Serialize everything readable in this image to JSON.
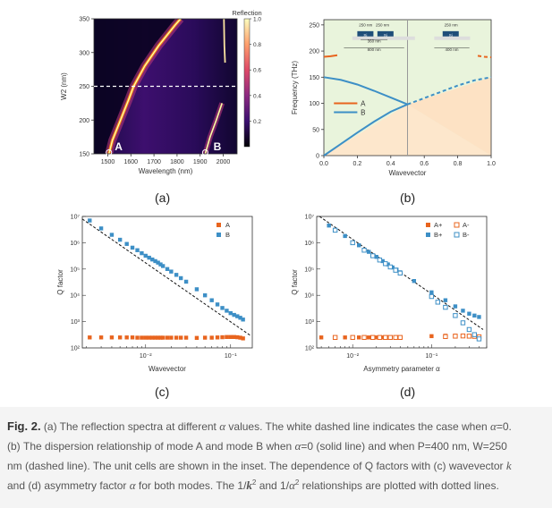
{
  "panel_labels": {
    "a": "(a)",
    "b": "(b)",
    "c": "(c)",
    "d": "(d)"
  },
  "caption": {
    "fig": "Fig. 2.",
    "t1": " (a) The reflection spectra at different ",
    "alpha": "α",
    "t2": " values. The white dashed line indicates the case when ",
    "eq0a": "α",
    "eq0b": "=0.",
    "t3": "(b) The dispersion relationship of mode A and mode B when ",
    "eq1a": "α",
    "eq1b": "=0 (solid line) and when P=400 nm, W=250",
    "t4": "nm (dashed line). The unit cells are shown in the inset. The dependence of Q factors with (c) wavevector ",
    "k": "k",
    "t5": "and (d) asymmetry factor ",
    "alpha2": "α",
    "t6": " for both modes. The 1/",
    "k2": "k",
    "sup1": "2",
    "t7": " and 1/",
    "a2": "α",
    "sup2": "2",
    "t8": " relationships are plotted with dotted lines."
  },
  "chart_data": [
    {
      "id": "a",
      "type": "heatmap",
      "title": "",
      "xlabel": "Wavelength (nm)",
      "ylabel": "W2 (nm)",
      "xlim": [
        1440,
        2060
      ],
      "ylim": [
        150,
        350
      ],
      "xticks": [
        1500,
        1600,
        1700,
        1800,
        1900,
        2000
      ],
      "yticks": [
        150,
        200,
        250,
        300,
        350
      ],
      "colorbar": {
        "label": "Reflection",
        "ticks": [
          1.0,
          0.8,
          0.6,
          0.4,
          0.2
        ],
        "range": [
          0,
          1.0
        ]
      },
      "dashed_line_y": 250,
      "mode_labels": [
        "A",
        "B"
      ],
      "modeA_curve": {
        "w2": [
          150,
          170,
          200,
          230,
          250,
          280,
          310,
          340,
          350
        ],
        "wavelength": [
          1505,
          1520,
          1555,
          1590,
          1612,
          1660,
          1720,
          1790,
          1815
        ]
      },
      "modeB_curve": {
        "w2": [
          150,
          175,
          200,
          225
        ],
        "wavelength": [
          1922,
          1943,
          1970,
          1995
        ]
      },
      "modeB_top": {
        "w2": [
          285,
          310,
          350
        ],
        "wavelength": [
          2008,
          2005,
          2003
        ]
      }
    },
    {
      "id": "b",
      "type": "line",
      "title": "",
      "xlabel": "Wavevector",
      "ylabel": "Frequency (THz)",
      "xlim": [
        0,
        1.0
      ],
      "ylim": [
        0,
        260
      ],
      "xticks": [
        0.0,
        0.2,
        0.4,
        0.6,
        0.8,
        1.0
      ],
      "yticks": [
        0,
        50,
        100,
        150,
        200,
        250
      ],
      "legend": [
        "A",
        "B"
      ],
      "vline_x": 0.5,
      "series": [
        {
          "name": "A",
          "style": "solid",
          "x": [
            0.0,
            0.04,
            0.08
          ],
          "y": [
            189,
            190,
            192
          ]
        },
        {
          "name": "",
          "style": "dashed",
          "x": [
            0.92,
            0.96,
            1.0
          ],
          "y": [
            191,
            189,
            188
          ]
        },
        {
          "name": "B",
          "style": "solid",
          "x": [
            0.0,
            0.1,
            0.2,
            0.3,
            0.4,
            0.5
          ],
          "y": [
            150,
            145,
            136,
            124,
            111,
            98
          ]
        },
        {
          "name": "",
          "style": "solid",
          "x": [
            0.0,
            0.1,
            0.2,
            0.3,
            0.4,
            0.5
          ],
          "y": [
            0,
            22,
            44,
            65,
            84,
            98
          ]
        },
        {
          "name": "",
          "style": "dashed",
          "x": [
            0.5,
            0.6,
            0.7,
            0.8,
            0.9,
            1.0
          ],
          "y": [
            98,
            110,
            122,
            134,
            144,
            150
          ]
        }
      ],
      "inset": {
        "left_labels": [
          "250 nm",
          "250 nm",
          "Si",
          "Si",
          "360 nm",
          "800 nm"
        ],
        "right_labels": [
          "250 nm",
          "Si",
          "400 nm"
        ]
      }
    },
    {
      "id": "c",
      "type": "scatter",
      "title": "",
      "xlabel": "Wavevector",
      "ylabel": "Q factor",
      "xscale": "log",
      "yscale": "log",
      "xlim": [
        0.0018,
        0.18
      ],
      "ylim": [
        100,
        10000000
      ],
      "xticks": [
        0.01,
        0.1
      ],
      "xtick_labels": [
        "10⁻²",
        "10⁻¹"
      ],
      "yticks": [
        100,
        1000,
        10000,
        100000,
        1000000,
        10000000
      ],
      "ytick_labels": [
        "10²",
        "10³",
        "10⁴",
        "10⁵",
        "10⁶",
        "10⁷"
      ],
      "legend": [
        "A",
        "B"
      ],
      "fit_line": {
        "x": [
          0.0018,
          0.17
        ],
        "y": [
          8000000,
          300
        ]
      },
      "series": [
        {
          "name": "A",
          "color": "#e8641e",
          "marker": "square",
          "x": [
            0.0022,
            0.003,
            0.004,
            0.005,
            0.006,
            0.007,
            0.008,
            0.009,
            0.01,
            0.011,
            0.012,
            0.013,
            0.014,
            0.015,
            0.016,
            0.018,
            0.02,
            0.023,
            0.026,
            0.03,
            0.04,
            0.05,
            0.06,
            0.07,
            0.08,
            0.09,
            0.1,
            0.11,
            0.12,
            0.13,
            0.14
          ],
          "y": [
            250,
            250,
            250,
            250,
            250,
            250,
            245,
            245,
            245,
            245,
            245,
            245,
            245,
            245,
            245,
            245,
            245,
            245,
            245,
            245,
            240,
            245,
            245,
            250,
            255,
            260,
            260,
            260,
            255,
            245,
            230
          ]
        },
        {
          "name": "B",
          "color": "#3d8fc6",
          "marker": "square",
          "x": [
            0.0022,
            0.003,
            0.004,
            0.005,
            0.006,
            0.007,
            0.008,
            0.009,
            0.01,
            0.011,
            0.012,
            0.013,
            0.014,
            0.015,
            0.016,
            0.018,
            0.02,
            0.023,
            0.026,
            0.03,
            0.04,
            0.05,
            0.06,
            0.07,
            0.08,
            0.09,
            0.1,
            0.11,
            0.12,
            0.13,
            0.14
          ],
          "y": [
            7000000,
            3500000,
            2000000,
            1300000,
            900000,
            650000,
            520000,
            400000,
            320000,
            270000,
            230000,
            200000,
            175000,
            150000,
            130000,
            100000,
            80000,
            60000,
            45000,
            33000,
            17000,
            10000,
            6500,
            4500,
            3300,
            2600,
            2100,
            1800,
            1600,
            1400,
            1200
          ]
        }
      ]
    },
    {
      "id": "d",
      "type": "scatter",
      "title": "",
      "xlabel": "Asymmetry parameter α",
      "ylabel": "Q factor",
      "xscale": "log",
      "yscale": "log",
      "xlim": [
        0.0035,
        0.5
      ],
      "ylim": [
        100,
        10000000
      ],
      "xticks": [
        0.01,
        0.1
      ],
      "xtick_labels": [
        "10⁻²",
        "10⁻¹"
      ],
      "yticks": [
        100,
        1000,
        10000,
        100000,
        1000000,
        10000000
      ],
      "ytick_labels": [
        "10²",
        "10³",
        "10⁴",
        "10⁵",
        "10⁶",
        "10⁷"
      ],
      "legend": [
        "A+",
        "A-",
        "B+",
        "B-"
      ],
      "fit_line": {
        "x": [
          0.0038,
          0.45
        ],
        "y": [
          10000000,
          500
        ]
      },
      "series": [
        {
          "name": "A+",
          "color": "#e8641e",
          "marker": "square",
          "filled": true,
          "x": [
            0.004,
            0.006,
            0.008,
            0.01,
            0.012,
            0.014,
            0.016,
            0.018,
            0.02,
            0.022,
            0.024,
            0.026,
            0.028,
            0.03,
            0.035,
            0.04,
            0.1,
            0.15,
            0.2,
            0.25,
            0.3,
            0.35,
            0.4
          ],
          "y": [
            250,
            250,
            250,
            250,
            250,
            250,
            250,
            250,
            250,
            250,
            250,
            250,
            250,
            250,
            250,
            250,
            280,
            290,
            290,
            285,
            280,
            275,
            270
          ]
        },
        {
          "name": "A-",
          "color": "#e8641e",
          "marker": "square",
          "filled": false,
          "x": [
            0.006,
            0.01,
            0.014,
            0.018,
            0.022,
            0.026,
            0.03,
            0.035,
            0.04,
            0.15,
            0.2,
            0.25,
            0.3,
            0.35,
            0.4
          ],
          "y": [
            250,
            250,
            250,
            250,
            250,
            250,
            250,
            250,
            250,
            270,
            280,
            285,
            280,
            275,
            265
          ]
        },
        {
          "name": "B+",
          "color": "#3d8fc6",
          "marker": "square",
          "filled": true,
          "x": [
            0.005,
            0.008,
            0.012,
            0.016,
            0.02,
            0.024,
            0.028,
            0.032,
            0.036,
            0.04,
            0.06,
            0.1,
            0.15,
            0.2,
            0.25,
            0.3,
            0.35,
            0.4
          ],
          "y": [
            4500000,
            1800000,
            800000,
            450000,
            290000,
            200000,
            150000,
            115000,
            95000,
            75000,
            35000,
            13000,
            6500,
            3800,
            2600,
            2000,
            1700,
            1500
          ]
        },
        {
          "name": "B-",
          "color": "#3d8fc6",
          "marker": "square",
          "filled": false,
          "x": [
            0.006,
            0.01,
            0.014,
            0.018,
            0.022,
            0.026,
            0.03,
            0.035,
            0.04,
            0.1,
            0.12,
            0.15,
            0.2,
            0.25,
            0.3,
            0.35,
            0.4
          ],
          "y": [
            3000000,
            1000000,
            520000,
            320000,
            220000,
            160000,
            120000,
            90000,
            70000,
            9000,
            5500,
            3500,
            1700,
            900,
            500,
            320,
            220
          ]
        }
      ]
    }
  ]
}
